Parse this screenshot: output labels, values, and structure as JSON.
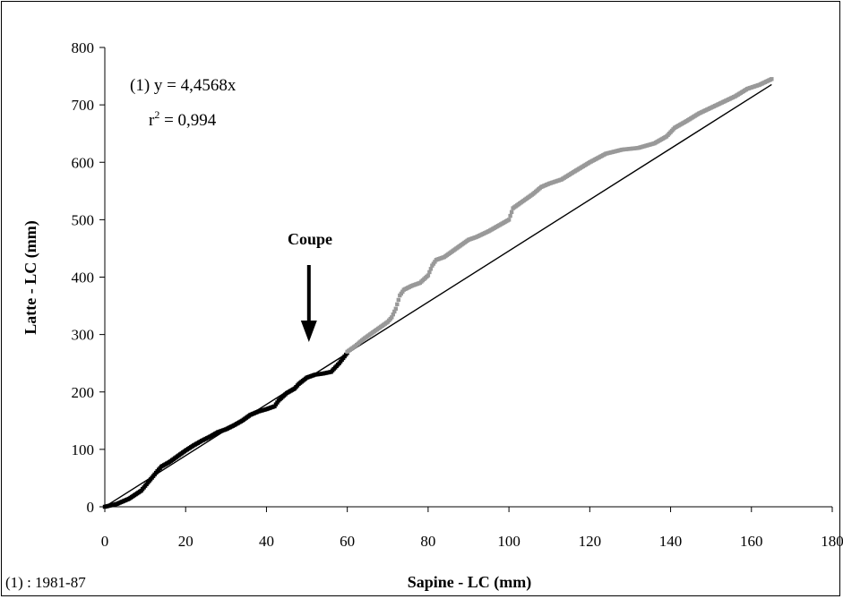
{
  "chart_data": {
    "type": "scatter",
    "xlabel": "Sapine - LC (mm)",
    "ylabel": "Latte - LC (mm)",
    "xlim": [
      0,
      180
    ],
    "ylim": [
      0,
      800
    ],
    "x_ticks": [
      "0",
      "20",
      "40",
      "60",
      "80",
      "100",
      "120",
      "140",
      "160",
      "180"
    ],
    "y_ticks": [
      "0",
      "100",
      "200",
      "300",
      "400",
      "500",
      "600",
      "700",
      "800"
    ],
    "grid": false,
    "series": [
      {
        "color": "#000000",
        "points": [
          [
            0,
            0
          ],
          [
            3,
            5
          ],
          [
            6,
            14
          ],
          [
            9,
            28
          ],
          [
            11,
            45
          ],
          [
            13,
            62
          ],
          [
            14,
            70
          ],
          [
            16,
            78
          ],
          [
            18,
            88
          ],
          [
            20,
            98
          ],
          [
            22,
            107
          ],
          [
            24,
            115
          ],
          [
            26,
            122
          ],
          [
            28,
            130
          ],
          [
            30,
            135
          ],
          [
            32,
            142
          ],
          [
            34,
            150
          ],
          [
            36,
            160
          ],
          [
            38,
            166
          ],
          [
            40,
            170
          ],
          [
            42,
            175
          ],
          [
            43,
            185
          ],
          [
            45,
            198
          ],
          [
            47,
            206
          ],
          [
            48,
            214
          ],
          [
            50,
            225
          ],
          [
            52,
            230
          ],
          [
            54,
            232
          ],
          [
            56,
            235
          ],
          [
            58,
            250
          ],
          [
            60,
            268
          ]
        ]
      },
      {
        "color": "#999999",
        "points": [
          [
            60,
            270
          ],
          [
            62,
            280
          ],
          [
            64,
            292
          ],
          [
            66,
            302
          ],
          [
            68,
            312
          ],
          [
            70,
            322
          ],
          [
            71,
            330
          ],
          [
            72,
            345
          ],
          [
            73,
            368
          ],
          [
            74,
            378
          ],
          [
            76,
            385
          ],
          [
            78,
            390
          ],
          [
            80,
            403
          ],
          [
            81,
            420
          ],
          [
            82,
            430
          ],
          [
            84,
            435
          ],
          [
            86,
            445
          ],
          [
            88,
            455
          ],
          [
            90,
            465
          ],
          [
            92,
            470
          ],
          [
            95,
            480
          ],
          [
            98,
            492
          ],
          [
            100,
            500
          ],
          [
            101,
            520
          ],
          [
            103,
            530
          ],
          [
            106,
            545
          ],
          [
            108,
            557
          ],
          [
            110,
            563
          ],
          [
            113,
            570
          ],
          [
            116,
            583
          ],
          [
            120,
            600
          ],
          [
            124,
            615
          ],
          [
            128,
            622
          ],
          [
            132,
            625
          ],
          [
            136,
            633
          ],
          [
            139,
            645
          ],
          [
            141,
            660
          ],
          [
            144,
            672
          ],
          [
            147,
            685
          ],
          [
            150,
            695
          ],
          [
            153,
            705
          ],
          [
            156,
            715
          ],
          [
            159,
            728
          ],
          [
            162,
            735
          ],
          [
            165,
            745
          ]
        ]
      }
    ],
    "trendline": {
      "slope": 4.4568,
      "x_range": [
        0,
        165
      ],
      "color": "#000000"
    },
    "annotations": {
      "equation": "(1) y = 4,4568x",
      "r2_prefix": "r",
      "r2_exp": "2",
      "r2_value": " = 0,994",
      "arrow_label": "Coupe",
      "arrow_x": 50.5
    },
    "footnote": "(1) : 1981-87"
  }
}
